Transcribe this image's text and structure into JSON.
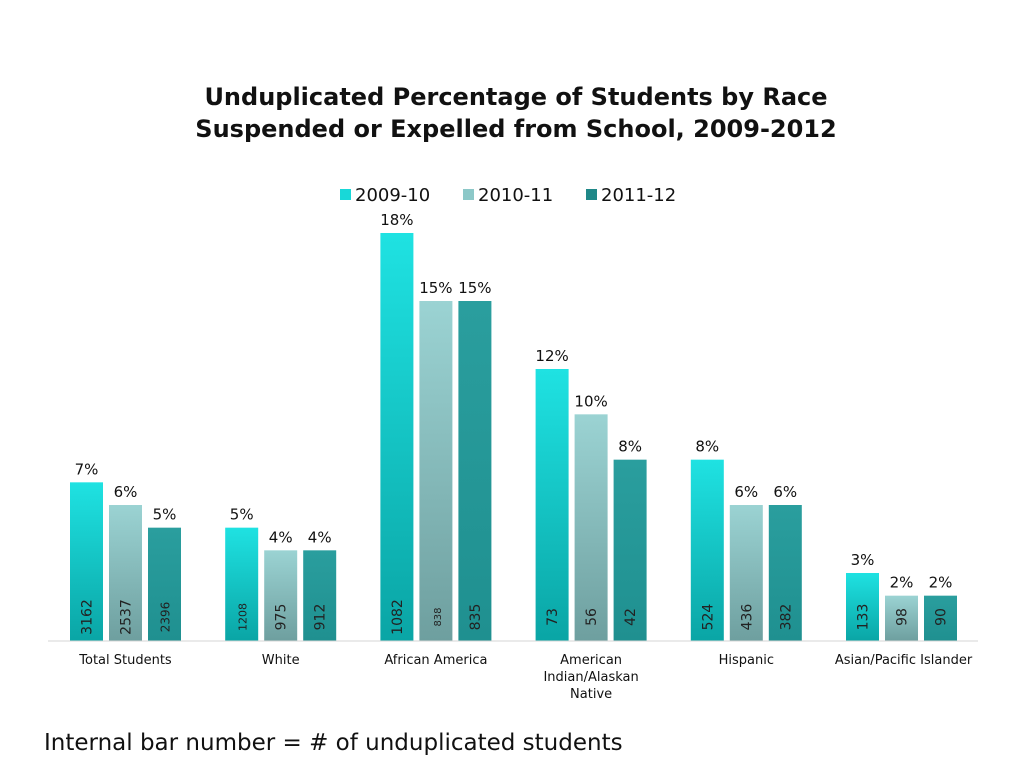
{
  "chart_data": {
    "type": "bar",
    "title": [
      "Unduplicated Percentage of Students by Race",
      "Suspended or Expelled from School, 2009-2012"
    ],
    "categories": [
      [
        "Total Students"
      ],
      [
        "White"
      ],
      [
        "African America"
      ],
      [
        "American",
        "Indian/Alaskan",
        "Native"
      ],
      [
        "Hispanic"
      ],
      [
        "Asian/Pacific Islander"
      ]
    ],
    "series": [
      {
        "name": "2009-10",
        "values": [
          7,
          5,
          18,
          12,
          8,
          3
        ],
        "counts": [
          "3162",
          "1208",
          "1082",
          "73",
          "524",
          "133"
        ],
        "labels": [
          "7%",
          "5%",
          "18%",
          "12%",
          "8%",
          "3%"
        ],
        "color_top": "#1fe2e2",
        "color_bottom": "#0aa5a5",
        "legend_color": "#18d8d8"
      },
      {
        "name": "2010-11",
        "values": [
          6,
          4,
          15,
          10,
          6,
          2
        ],
        "counts": [
          "2537",
          "975",
          "838",
          "56",
          "436",
          "98"
        ],
        "labels": [
          "6%",
          "4%",
          "15%",
          "10%",
          "6%",
          "2%"
        ],
        "color_top": "#9bd3d3",
        "color_bottom": "#6e9f9f",
        "legend_color": "#8cc8c8"
      },
      {
        "name": "2011-12",
        "values": [
          5,
          4,
          15,
          8,
          6,
          2
        ],
        "counts": [
          "2396",
          "912",
          "835",
          "42",
          "382",
          "90"
        ],
        "labels": [
          "5%",
          "4%",
          "15%",
          "8%",
          "6%",
          "2%"
        ],
        "color_top": "#2a9e9e",
        "color_bottom": "#1f9090",
        "legend_color": "#1f8888"
      }
    ],
    "ylim": [
      0,
      18
    ],
    "grid": false,
    "legend_position": "top-center"
  },
  "footnote": "Internal bar number = # of unduplicated students"
}
